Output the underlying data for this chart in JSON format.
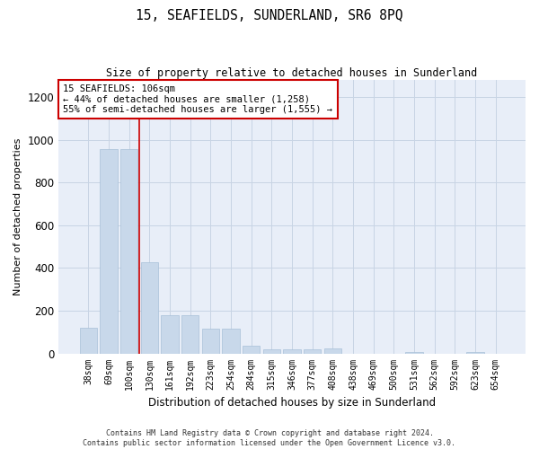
{
  "title": "15, SEAFIELDS, SUNDERLAND, SR6 8PQ",
  "subtitle": "Size of property relative to detached houses in Sunderland",
  "xlabel": "Distribution of detached houses by size in Sunderland",
  "ylabel": "Number of detached properties",
  "footer_line1": "Contains HM Land Registry data © Crown copyright and database right 2024.",
  "footer_line2": "Contains public sector information licensed under the Open Government Licence v3.0.",
  "annotation_line1": "15 SEAFIELDS: 106sqm",
  "annotation_line2": "← 44% of detached houses are smaller (1,258)",
  "annotation_line3": "55% of semi-detached houses are larger (1,555) →",
  "bar_color": "#c8d8ea",
  "bar_edge_color": "#a8c0d8",
  "grid_color": "#c8d4e4",
  "annotation_box_edge": "#cc0000",
  "vline_color": "#cc0000",
  "categories": [
    "38sqm",
    "69sqm",
    "100sqm",
    "130sqm",
    "161sqm",
    "192sqm",
    "223sqm",
    "254sqm",
    "284sqm",
    "315sqm",
    "346sqm",
    "377sqm",
    "408sqm",
    "438sqm",
    "469sqm",
    "500sqm",
    "531sqm",
    "562sqm",
    "592sqm",
    "623sqm",
    "654sqm"
  ],
  "values": [
    120,
    955,
    955,
    425,
    180,
    180,
    115,
    115,
    38,
    18,
    18,
    18,
    22,
    0,
    0,
    0,
    5,
    0,
    0,
    5,
    0
  ],
  "ylim": [
    0,
    1280
  ],
  "yticks": [
    0,
    200,
    400,
    600,
    800,
    1000,
    1200
  ],
  "vline_x": 2.5,
  "figsize": [
    6.0,
    5.0
  ],
  "dpi": 100,
  "fig_bg": "#ffffff",
  "ax_bg": "#e8eef8"
}
